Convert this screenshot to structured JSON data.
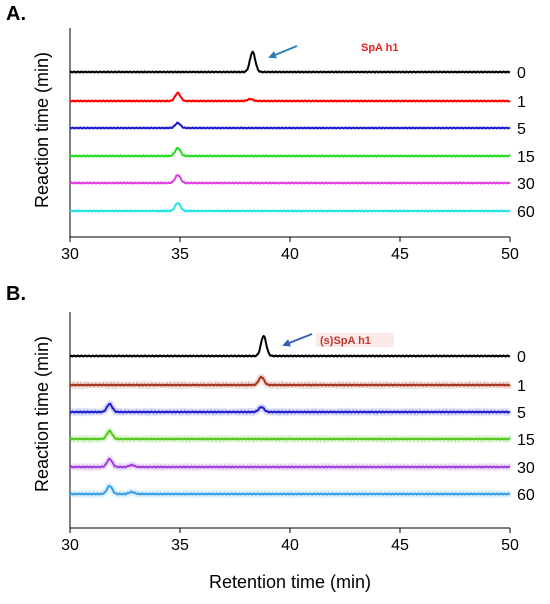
{
  "panels": [
    {
      "panel_label": "A.",
      "compound_label": "SpA h1",
      "compound_color": "#e8211b",
      "arrow_color": "#2e7fb8"
    },
    {
      "panel_label": "B.",
      "compound_label": "(s)SpA h1",
      "compound_color": "#c0392b",
      "arrow_color": "#3a5fb0"
    }
  ],
  "chart_data": [
    {
      "type": "line",
      "title": "",
      "xlabel": "",
      "ylabel": "Reaction time (min)",
      "xlim": [
        30,
        50
      ],
      "x_ticks": [
        "30",
        "35",
        "40",
        "45",
        "50"
      ],
      "grid": false,
      "series": [
        {
          "name": "0",
          "color": "#000000",
          "peaks": [
            {
              "x": 38.3,
              "height": "large"
            }
          ]
        },
        {
          "name": "1",
          "color": "#ff0000",
          "peaks": [
            {
              "x": 34.9,
              "height": "medium"
            },
            {
              "x": 38.2,
              "height": "trace"
            }
          ]
        },
        {
          "name": "5",
          "color": "#1f1fd0",
          "peaks": [
            {
              "x": 34.9,
              "height": "small"
            }
          ]
        },
        {
          "name": "15",
          "color": "#22dd22",
          "peaks": [
            {
              "x": 34.9,
              "height": "medium"
            }
          ]
        },
        {
          "name": "30",
          "color": "#e040e0",
          "peaks": [
            {
              "x": 34.9,
              "height": "medium"
            }
          ]
        },
        {
          "name": "60",
          "color": "#22e5e5",
          "peaks": [
            {
              "x": 34.9,
              "height": "medium"
            }
          ]
        }
      ]
    },
    {
      "type": "line",
      "title": "",
      "xlabel": "Retention time (min)",
      "ylabel": "Reaction time (min)",
      "xlim": [
        30,
        50
      ],
      "x_ticks": [
        "30",
        "35",
        "40",
        "45",
        "50"
      ],
      "grid": false,
      "series": [
        {
          "name": "0",
          "color": "#000000",
          "peaks": [
            {
              "x": 38.8,
              "height": "large"
            }
          ]
        },
        {
          "name": "1",
          "color": "#a83220",
          "peaks": [
            {
              "x": 38.7,
              "height": "medium"
            }
          ]
        },
        {
          "name": "5",
          "color": "#1f1fd0",
          "peaks": [
            {
              "x": 31.8,
              "height": "medium"
            },
            {
              "x": 38.7,
              "height": "small"
            }
          ]
        },
        {
          "name": "15",
          "color": "#55c81e",
          "peaks": [
            {
              "x": 31.8,
              "height": "medium"
            }
          ]
        },
        {
          "name": "30",
          "color": "#a040e0",
          "peaks": [
            {
              "x": 31.8,
              "height": "medium"
            },
            {
              "x": 32.8,
              "height": "trace"
            }
          ]
        },
        {
          "name": "60",
          "color": "#3aa0e8",
          "peaks": [
            {
              "x": 31.8,
              "height": "medium"
            },
            {
              "x": 32.8,
              "height": "trace"
            }
          ]
        }
      ]
    }
  ]
}
